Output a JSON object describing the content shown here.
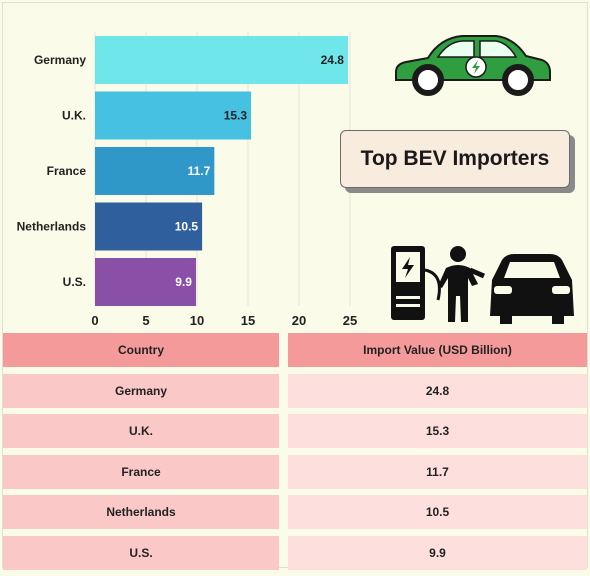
{
  "chart_data": {
    "type": "bar",
    "orientation": "horizontal",
    "categories": [
      "Germany",
      "U.K.",
      "France",
      "Netherlands",
      "U.S."
    ],
    "values": [
      24.8,
      15.3,
      11.7,
      10.5,
      9.9
    ],
    "colors": [
      "#6fe6ea",
      "#46c1e2",
      "#3097c9",
      "#2f5f9c",
      "#8a4fa6"
    ],
    "value_label_colors": [
      "#222222",
      "#222222",
      "#ffffff",
      "#ffffff",
      "#ffffff"
    ],
    "title": "Top BEV Importers",
    "xlim": [
      0,
      25
    ],
    "x_ticks": [
      0,
      5,
      10,
      15,
      20,
      25
    ],
    "grid": true
  },
  "table": {
    "headers": [
      "Country",
      "Import Value (USD Billion)"
    ],
    "rows": [
      [
        "Germany",
        "24.8"
      ],
      [
        "U.K.",
        "15.3"
      ],
      [
        "France",
        "11.7"
      ],
      [
        "Netherlands",
        "10.5"
      ],
      [
        "U.S.",
        "9.9"
      ]
    ]
  },
  "icons": [
    "electric-car-icon",
    "charging-station-icon",
    "person-icon",
    "car-front-icon"
  ]
}
